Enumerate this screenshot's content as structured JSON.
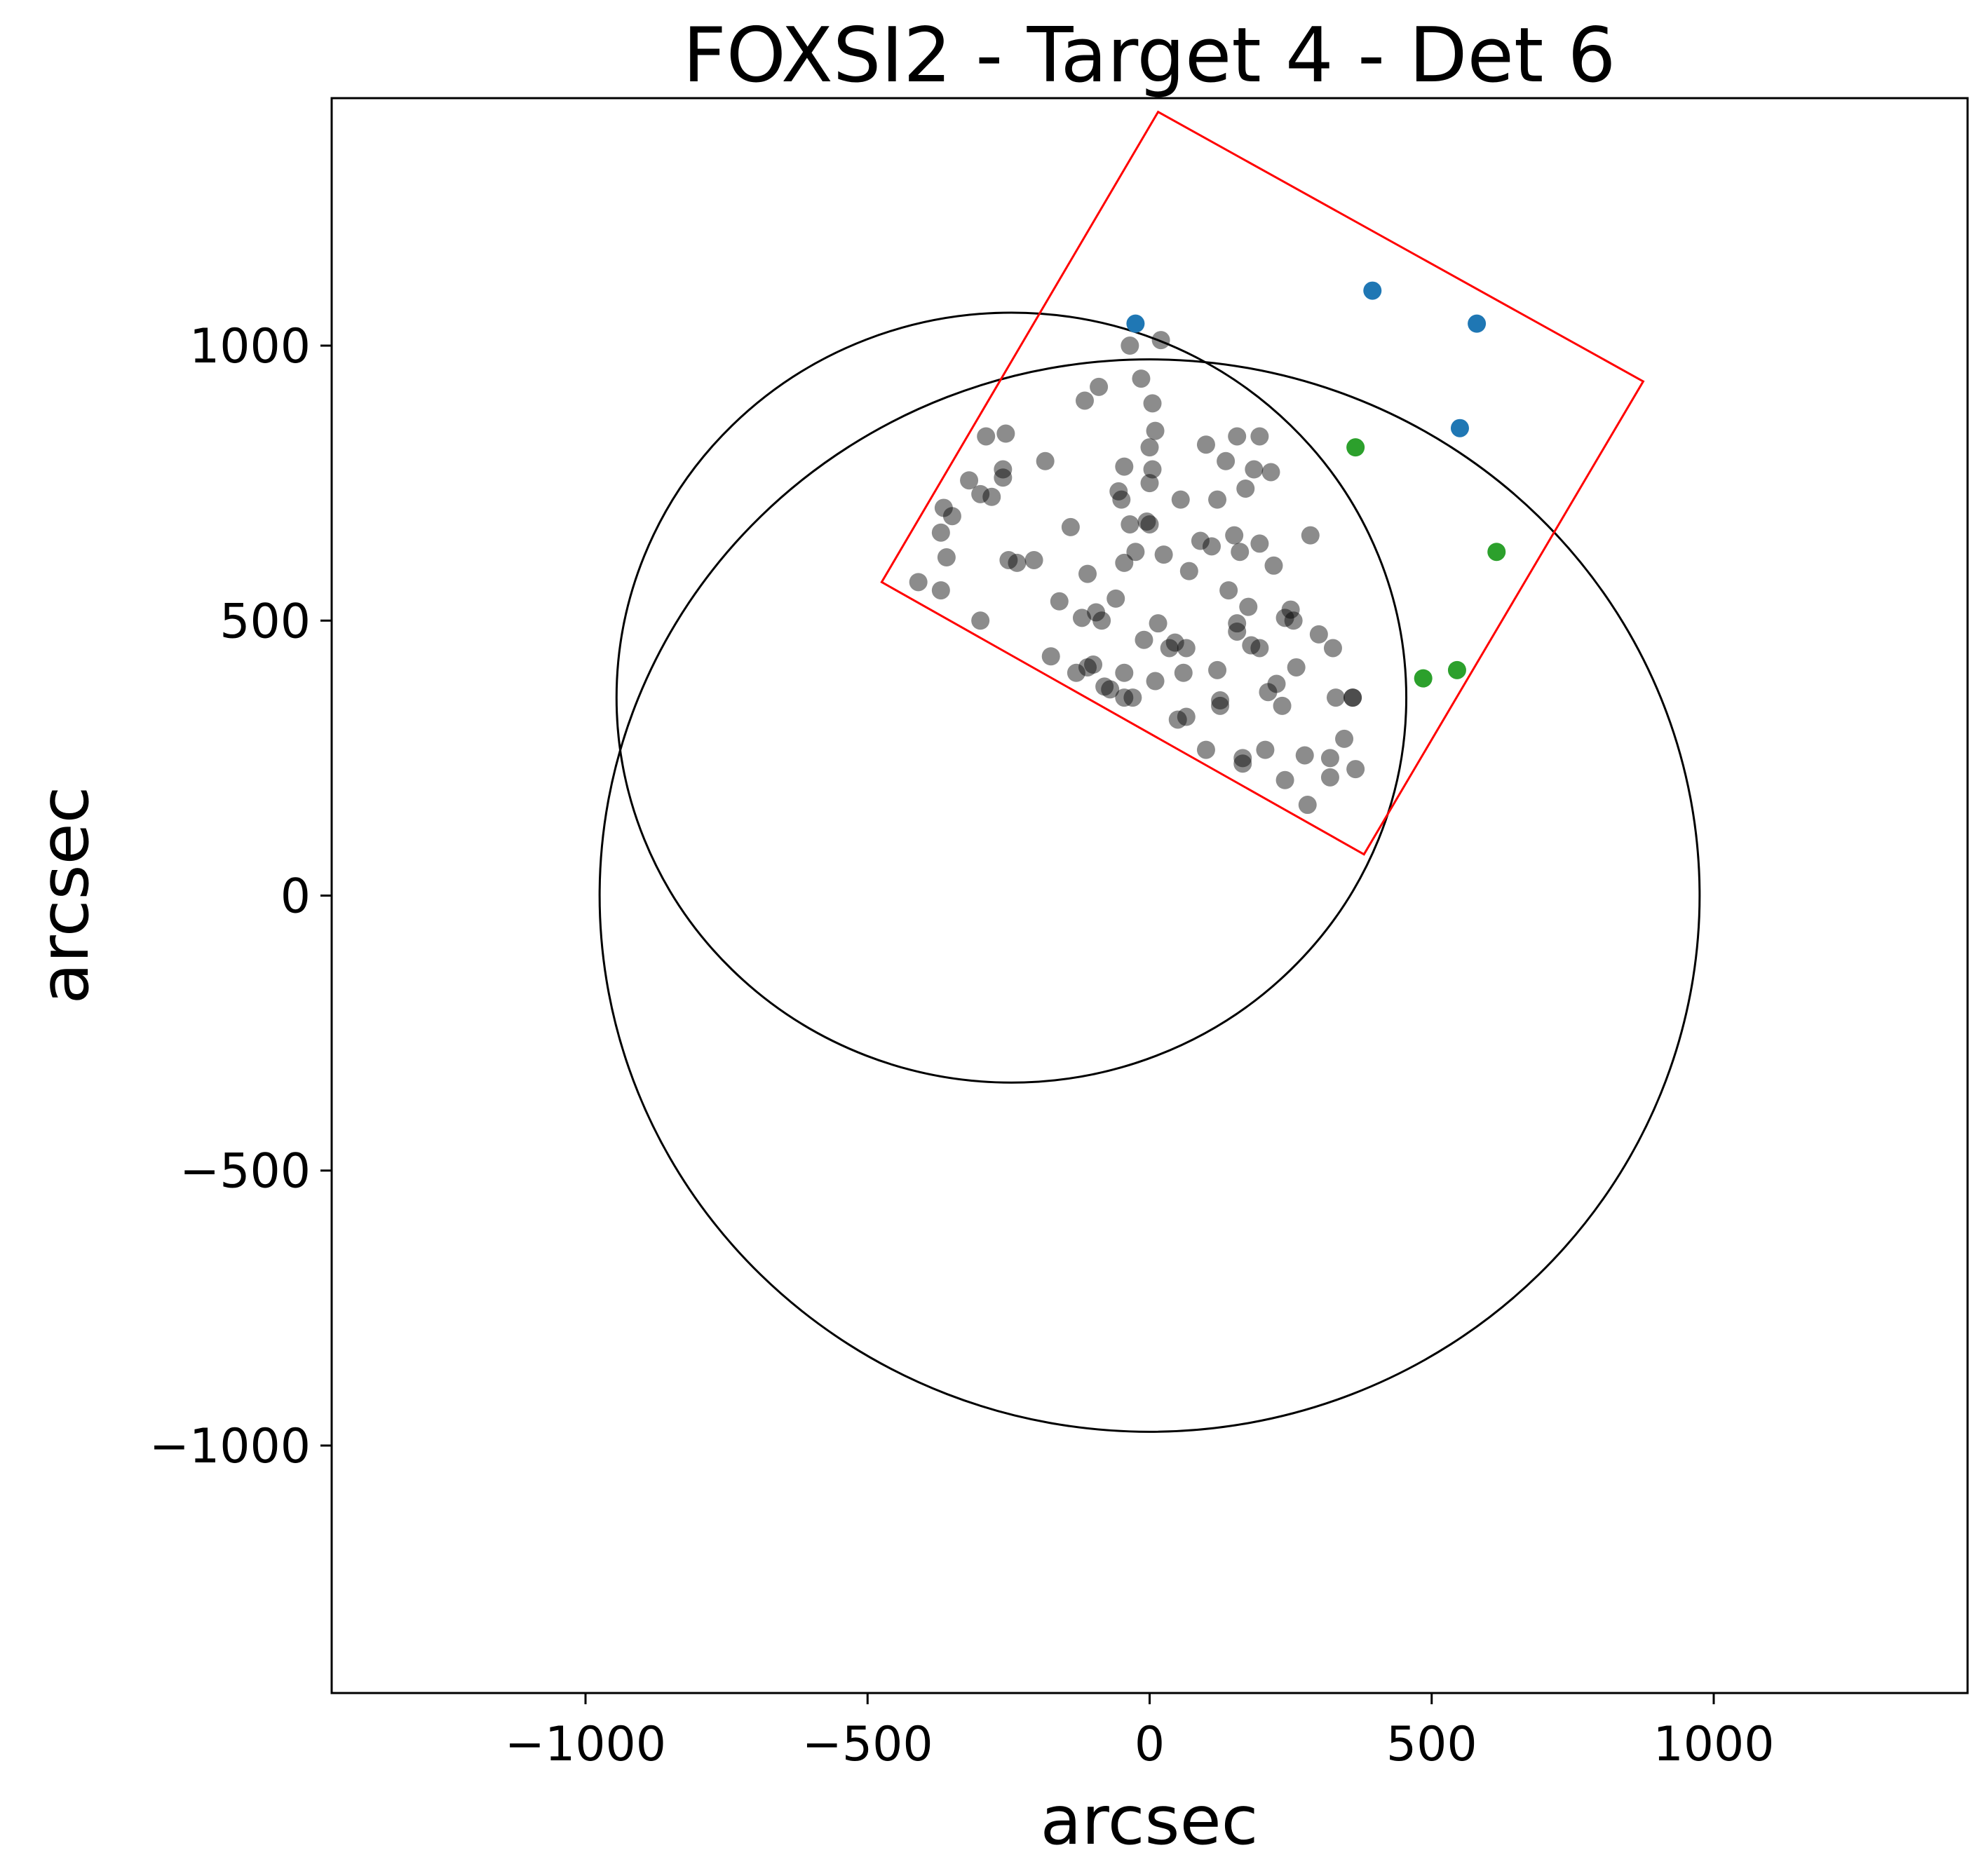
{
  "chart_data": {
    "type": "scatter",
    "title": "FOXSI2 - Target 4 - Det 6",
    "xlabel": "arcsec",
    "ylabel": "arcsec",
    "xlim": [
      -1450,
      1450
    ],
    "ylim": [
      -1450,
      1450
    ],
    "xticks": [
      {
        "value": -1000,
        "label": "−1000"
      },
      {
        "value": -500,
        "label": "−500"
      },
      {
        "value": 0,
        "label": "0"
      },
      {
        "value": 500,
        "label": "500"
      },
      {
        "value": 1000,
        "label": "1000"
      }
    ],
    "yticks": [
      {
        "value": 1000,
        "label": "1000"
      },
      {
        "value": 500,
        "label": "500"
      },
      {
        "value": 0,
        "label": "0"
      },
      {
        "value": -500,
        "label": "−500"
      },
      {
        "value": -1000,
        "label": "−1000"
      }
    ],
    "grid": false,
    "legend": "none",
    "circles": [
      {
        "cx": 0,
        "cy": 0,
        "r": 975,
        "color": "#000000"
      },
      {
        "cx": -245,
        "cy": 360,
        "r": 700,
        "color": "#000000"
      }
    ],
    "detector_box": {
      "color": "#ff0000",
      "corners": [
        [
          15,
          1425
        ],
        [
          875,
          935
        ],
        [
          380,
          75
        ],
        [
          -475,
          570
        ]
      ]
    },
    "series": [
      {
        "color": "#000000",
        "opacity": 0.45,
        "points": [
          [
            -410,
            570
          ],
          [
            -370,
            555
          ],
          [
            -300,
            500
          ],
          [
            -360,
            615
          ],
          [
            -370,
            660
          ],
          [
            -365,
            705
          ],
          [
            -350,
            690
          ],
          [
            -320,
            755
          ],
          [
            -300,
            730
          ],
          [
            -290,
            835
          ],
          [
            -280,
            725
          ],
          [
            -260,
            760
          ],
          [
            -260,
            775
          ],
          [
            -255,
            840
          ],
          [
            -250,
            610
          ],
          [
            -235,
            605
          ],
          [
            -205,
            610
          ],
          [
            -185,
            790
          ],
          [
            -160,
            535
          ],
          [
            -175,
            435
          ],
          [
            -140,
            670
          ],
          [
            -130,
            405
          ],
          [
            -120,
            505
          ],
          [
            -115,
            900
          ],
          [
            -110,
            585
          ],
          [
            -110,
            415
          ],
          [
            -100,
            420
          ],
          [
            -95,
            515
          ],
          [
            -90,
            925
          ],
          [
            -85,
            500
          ],
          [
            -80,
            380
          ],
          [
            -70,
            375
          ],
          [
            -60,
            540
          ],
          [
            -55,
            735
          ],
          [
            -50,
            720
          ],
          [
            -45,
            605
          ],
          [
            -45,
            780
          ],
          [
            -45,
            360
          ],
          [
            -45,
            405
          ],
          [
            -35,
            675
          ],
          [
            -30,
            360
          ],
          [
            -35,
            1000
          ],
          [
            -25,
            625
          ],
          [
            -15,
            940
          ],
          [
            -10,
            465
          ],
          [
            -5,
            680
          ],
          [
            0,
            675
          ],
          [
            0,
            750
          ],
          [
            5,
            775
          ],
          [
            0,
            815
          ],
          [
            5,
            895
          ],
          [
            10,
            845
          ],
          [
            10,
            390
          ],
          [
            15,
            495
          ],
          [
            25,
            620
          ],
          [
            20,
            1010
          ],
          [
            35,
            450
          ],
          [
            45,
            460
          ],
          [
            50,
            320
          ],
          [
            55,
            720
          ],
          [
            60,
            405
          ],
          [
            65,
            325
          ],
          [
            65,
            450
          ],
          [
            70,
            590
          ],
          [
            90,
            645
          ],
          [
            100,
            265
          ],
          [
            100,
            820
          ],
          [
            110,
            635
          ],
          [
            120,
            720
          ],
          [
            120,
            410
          ],
          [
            125,
            345
          ],
          [
            125,
            355
          ],
          [
            135,
            790
          ],
          [
            140,
            555
          ],
          [
            150,
            655
          ],
          [
            155,
            495
          ],
          [
            155,
            480
          ],
          [
            155,
            835
          ],
          [
            160,
            625
          ],
          [
            165,
            250
          ],
          [
            165,
            240
          ],
          [
            170,
            740
          ],
          [
            175,
            525
          ],
          [
            180,
            455
          ],
          [
            185,
            775
          ],
          [
            195,
            640
          ],
          [
            195,
            835
          ],
          [
            195,
            450
          ],
          [
            205,
            265
          ],
          [
            210,
            370
          ],
          [
            215,
            770
          ],
          [
            220,
            600
          ],
          [
            225,
            385
          ],
          [
            235,
            345
          ],
          [
            240,
            505
          ],
          [
            240,
            210
          ],
          [
            250,
            520
          ],
          [
            255,
            500
          ],
          [
            260,
            415
          ],
          [
            275,
            255
          ],
          [
            280,
            165
          ],
          [
            285,
            655
          ],
          [
            300,
            475
          ],
          [
            320,
            250
          ],
          [
            320,
            215
          ],
          [
            325,
            450
          ],
          [
            330,
            360
          ],
          [
            345,
            285
          ],
          [
            360,
            360
          ],
          [
            365,
            230
          ],
          [
            360,
            360
          ]
        ]
      },
      {
        "color": "#1f77b4",
        "opacity": 1,
        "points": [
          [
            -25,
            1040
          ],
          [
            395,
            1100
          ],
          [
            580,
            1040
          ],
          [
            550,
            850
          ]
        ]
      },
      {
        "color": "#2ca02c",
        "opacity": 1,
        "points": [
          [
            365,
            815
          ],
          [
            615,
            625
          ],
          [
            485,
            395
          ],
          [
            545,
            410
          ]
        ]
      }
    ]
  }
}
